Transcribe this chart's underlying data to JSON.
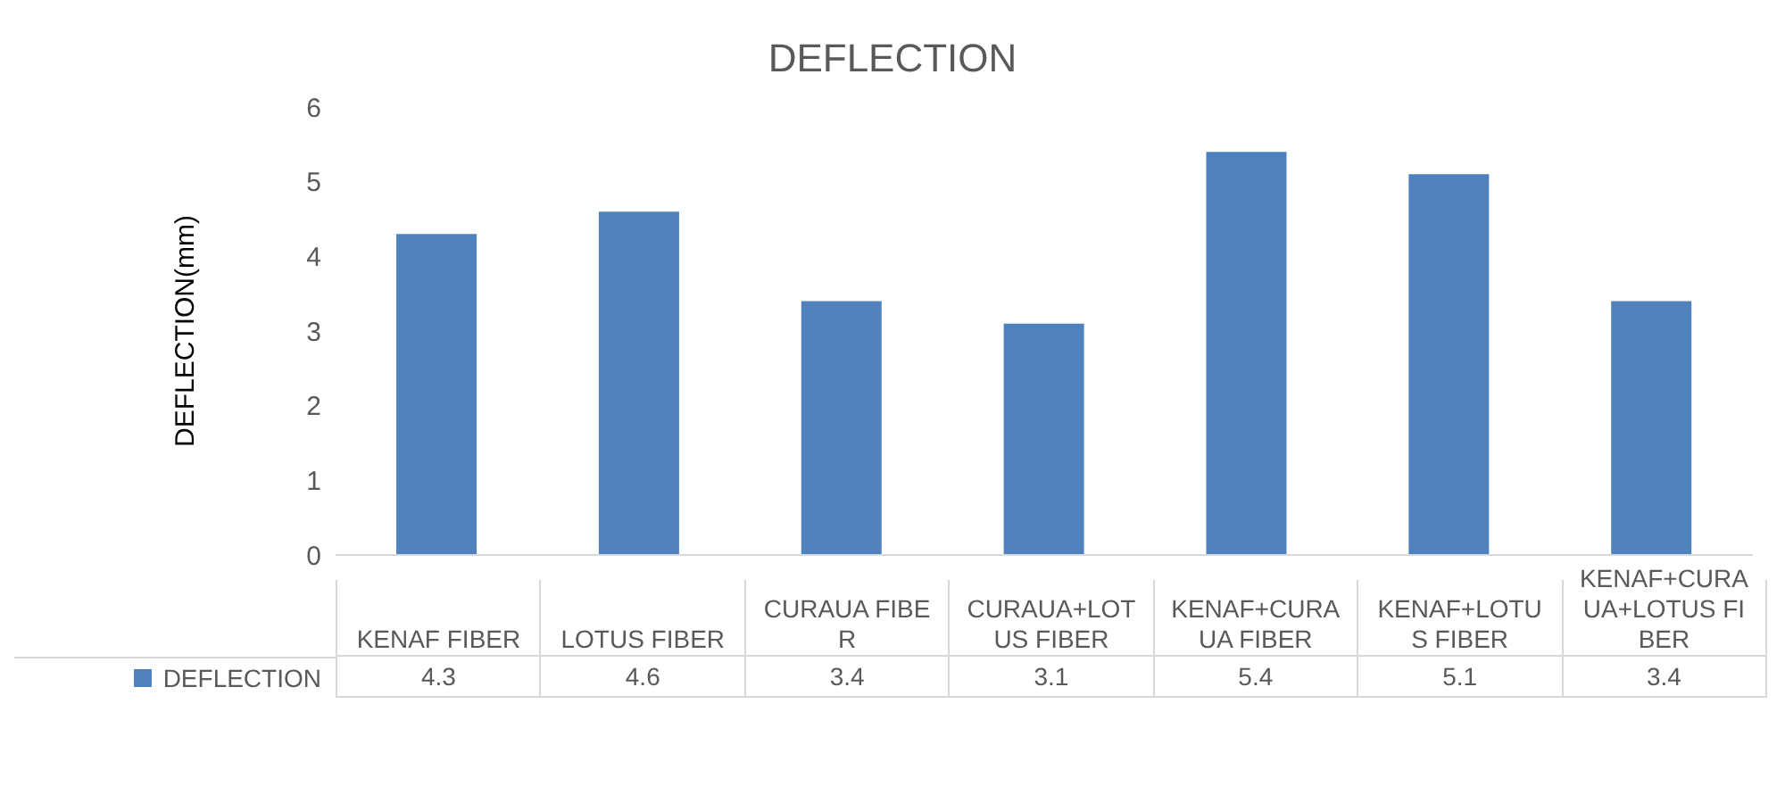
{
  "chart_data": {
    "type": "bar",
    "title": "DEFLECTION",
    "ylabel": "DEFLECTION(mm)",
    "categories": [
      "KENAF FIBER",
      "LOTUS FIBER",
      "CURAUA FIBER",
      "CURAUA+LOTUS FIBER",
      "KENAF+CURAUA FIBER",
      "KENAF+LOTUS FIBER",
      "KENAF+CURAUA+LOTUS FIBER"
    ],
    "series": [
      {
        "name": "DEFLECTION",
        "color": "#4f81bd",
        "values": [
          4.3,
          4.6,
          3.4,
          3.1,
          5.4,
          5.1,
          3.4
        ]
      }
    ],
    "ylim": [
      0,
      6
    ],
    "yticks": [
      0,
      1,
      2,
      3,
      4,
      5,
      6
    ],
    "legend": "bottom",
    "data_labels": true
  }
}
